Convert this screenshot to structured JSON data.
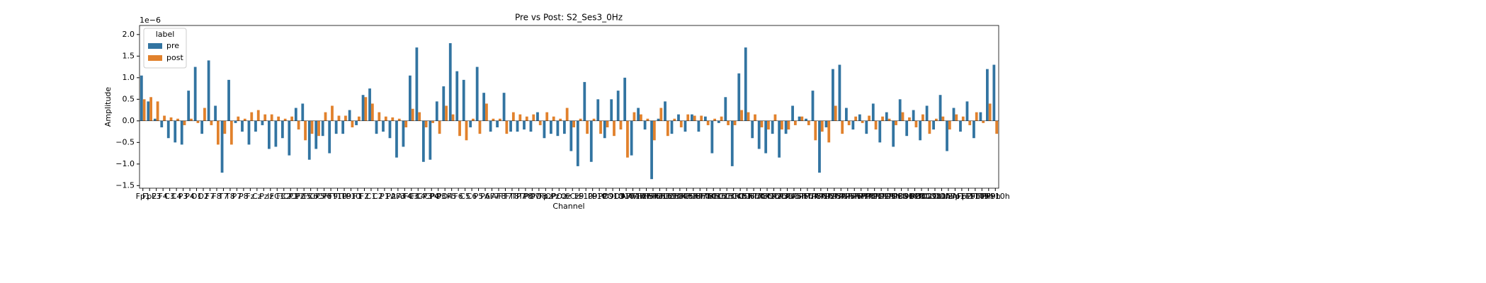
{
  "chart_data": {
    "type": "bar",
    "title": "Pre vs Post: S2_Ses3_0Hz",
    "xlabel": "Channel",
    "ylabel": "Amplitude",
    "y_offset_label": "1e−6",
    "legend_title": "label",
    "legend_loc": "upper left",
    "categories": [
      "Fp1",
      "Fp2",
      "F3",
      "F4",
      "C3",
      "C4",
      "P3",
      "P4",
      "O1",
      "O2",
      "F7",
      "F8",
      "T7",
      "T8",
      "P7",
      "P8",
      "Fz",
      "Cz",
      "Pz",
      "Iz",
      "FC1",
      "FC2",
      "CP1",
      "CP2",
      "FC5",
      "FC6",
      "CP5",
      "CP6",
      "FT9",
      "FT10",
      "TP9",
      "TP10",
      "F1",
      "F2",
      "C1",
      "C2",
      "P1",
      "P2",
      "AF3",
      "AF4",
      "FC3",
      "FC4",
      "CP3",
      "CP4",
      "PO3",
      "PO4",
      "F5",
      "F6",
      "C5",
      "C6",
      "P5",
      "P6",
      "AF7",
      "AF8",
      "FT7",
      "FT8",
      "TP7",
      "TP8",
      "PO7",
      "PO8",
      "Fpz",
      "CPz",
      "POz",
      "Oz",
      "FCz",
      "F9",
      "F10",
      "P9",
      "P10",
      "PO9",
      "PO10",
      "O9",
      "O10",
      "AFF1h",
      "AFF2h",
      "AFF5h",
      "AFF6h",
      "FFC1h",
      "FFC2h",
      "FFC3h",
      "FFC4h",
      "FFC5h",
      "FFC6h",
      "FFT7h",
      "FFT8h",
      "FCC1h",
      "FCC2h",
      "FCC3h",
      "FCC4h",
      "FCC5h",
      "FCC6h",
      "FTT7h",
      "FTT8h",
      "CCP1h",
      "CCP2h",
      "CCP3h",
      "CCP4h",
      "CCP5h",
      "CCP6h",
      "TTP7h",
      "TTP8h",
      "CPP1h",
      "CPP2h",
      "CPP3h",
      "CPP4h",
      "CPP5h",
      "CPP6h",
      "TPP7h",
      "TPP8h",
      "PPO1h",
      "PPO2h",
      "PPO5h",
      "PPO6h",
      "PPO9h",
      "PPO10h",
      "POO1",
      "POO2",
      "POO9h",
      "POO10h",
      "OI1h",
      "OI2h",
      "AFp1",
      "AFp2",
      "FFT9h",
      "FFT10h",
      "FTT9h",
      "TPP9h",
      "TPP10h"
    ],
    "series": [
      {
        "name": "pre",
        "color": "#3274a1",
        "values": [
          1.05,
          0.45,
          0.05,
          -0.15,
          -0.4,
          -0.5,
          -0.55,
          0.7,
          1.25,
          -0.3,
          1.4,
          0.35,
          -1.2,
          0.95,
          -0.05,
          -0.25,
          -0.55,
          -0.25,
          -0.1,
          -0.65,
          -0.6,
          -0.4,
          -0.8,
          0.3,
          0.4,
          -0.9,
          -0.65,
          -0.35,
          -0.75,
          -0.3,
          -0.3,
          0.25,
          -0.1,
          0.6,
          0.75,
          -0.3,
          -0.25,
          -0.4,
          -0.85,
          -0.6,
          1.05,
          1.7,
          -0.95,
          -0.9,
          0.45,
          0.8,
          1.8,
          1.15,
          0.95,
          -0.15,
          1.25,
          0.65,
          -0.25,
          -0.15,
          0.65,
          -0.25,
          -0.25,
          -0.2,
          -0.25,
          0.2,
          -0.4,
          -0.3,
          -0.35,
          -0.3,
          -0.7,
          -1.05,
          0.9,
          -0.95,
          0.5,
          -0.4,
          0.5,
          0.7,
          1.0,
          -0.8,
          0.3,
          -0.2,
          -1.35,
          0.05,
          0.45,
          -0.3,
          0.15,
          -0.25,
          0.15,
          -0.25,
          0.1,
          -0.75,
          -0.05,
          0.55,
          -1.05,
          1.1,
          1.7,
          -0.4,
          -0.65,
          -0.75,
          -0.3,
          -0.85,
          -0.3,
          0.35,
          0.1,
          0.05,
          0.7,
          -1.2,
          -0.15,
          1.2,
          1.3,
          0.3,
          -0.2,
          0.15,
          -0.3,
          0.4,
          -0.5,
          0.2,
          -0.6,
          0.5,
          -0.35,
          0.25,
          -0.45,
          0.35,
          -0.2,
          0.6,
          -0.7,
          0.3,
          -0.25,
          0.45,
          -0.4,
          0.2,
          1.2,
          1.3
        ]
      },
      {
        "name": "post",
        "color": "#e1812c",
        "values": [
          0.5,
          0.55,
          0.45,
          0.12,
          0.08,
          0.05,
          -0.1,
          0.05,
          -0.05,
          0.3,
          -0.1,
          -0.55,
          -0.3,
          -0.55,
          0.1,
          0.05,
          0.2,
          0.25,
          0.15,
          0.15,
          0.1,
          0.05,
          0.1,
          -0.2,
          -0.45,
          -0.3,
          -0.35,
          0.2,
          0.35,
          0.12,
          0.12,
          -0.15,
          0.1,
          0.55,
          0.4,
          0.2,
          0.1,
          0.08,
          0.05,
          -0.15,
          0.28,
          0.2,
          -0.15,
          -0.05,
          -0.3,
          0.35,
          0.15,
          -0.35,
          -0.45,
          0.05,
          -0.3,
          0.4,
          0.05,
          0.05,
          -0.3,
          0.2,
          0.15,
          0.1,
          0.15,
          -0.1,
          0.2,
          0.1,
          0.05,
          0.3,
          -0.15,
          0.05,
          -0.3,
          0.05,
          -0.3,
          -0.15,
          -0.35,
          -0.2,
          -0.85,
          0.2,
          0.15,
          0.05,
          -0.45,
          0.3,
          -0.35,
          0.05,
          -0.15,
          0.15,
          0.12,
          0.12,
          -0.1,
          0.05,
          0.1,
          -0.1,
          -0.1,
          0.25,
          0.2,
          0.15,
          -0.15,
          -0.2,
          0.15,
          -0.2,
          -0.2,
          -0.1,
          0.1,
          -0.1,
          -0.45,
          -0.25,
          -0.5,
          0.35,
          -0.3,
          -0.1,
          0.1,
          -0.05,
          0.12,
          -0.2,
          0.1,
          0.05,
          -0.1,
          0.2,
          0.08,
          -0.15,
          0.15,
          -0.3,
          0.05,
          0.1,
          -0.2,
          0.15,
          0.1,
          -0.1,
          0.2,
          -0.05,
          0.4,
          -0.3
        ]
      }
    ],
    "ylim": [
      -1.56,
      2.21
    ],
    "yticks": [
      {
        "value": -1.5,
        "label": "−1.5"
      },
      {
        "value": -1.0,
        "label": "−1.0"
      },
      {
        "value": -0.5,
        "label": "−0.5"
      },
      {
        "value": 0.0,
        "label": "0.0"
      },
      {
        "value": 0.5,
        "label": "0.5"
      },
      {
        "value": 1.0,
        "label": "1.0"
      },
      {
        "value": 1.5,
        "label": "1.5"
      },
      {
        "value": 2.0,
        "label": "2.0"
      }
    ]
  }
}
